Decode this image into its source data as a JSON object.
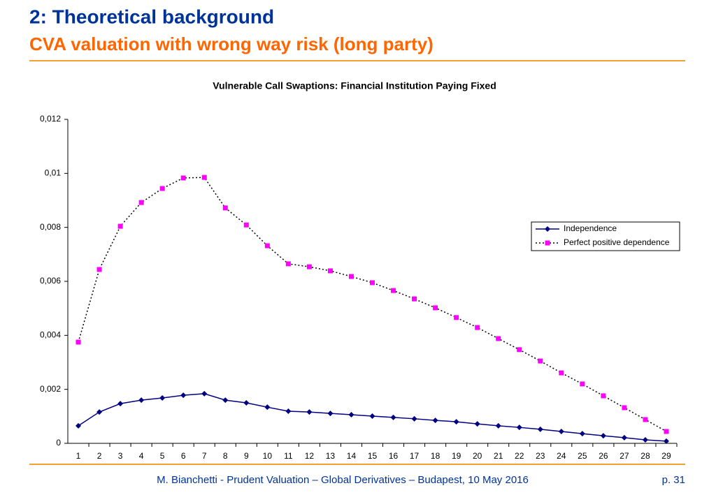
{
  "slide": {
    "title": "2: Theoretical background",
    "subtitle": "CVA valuation with wrong way risk (long party)",
    "footer": "M. Bianchetti - Prudent Valuation – Global Derivatives – Budapest, 10 May 2016",
    "page": "p. 31"
  },
  "chart_data": {
    "type": "line",
    "title": "Vulnerable Call Swaptions: Financial Institution Paying Fixed",
    "categories": [
      1,
      2,
      3,
      4,
      5,
      6,
      7,
      8,
      9,
      10,
      11,
      12,
      13,
      14,
      15,
      16,
      17,
      18,
      19,
      20,
      21,
      22,
      23,
      24,
      25,
      26,
      27,
      28,
      29
    ],
    "series": [
      {
        "name": "Independence",
        "color": "#000080",
        "line_color": "#000080",
        "line_style": "solid",
        "marker": "diamond",
        "values": [
          0.00065,
          0.00116,
          0.00147,
          0.0016,
          0.00168,
          0.00178,
          0.00184,
          0.0016,
          0.0015,
          0.00134,
          0.00119,
          0.00116,
          0.00111,
          0.00106,
          0.00101,
          0.00096,
          0.00091,
          0.00085,
          0.0008,
          0.00072,
          0.00065,
          0.00059,
          0.00052,
          0.00044,
          0.00036,
          0.00028,
          0.00021,
          0.00013,
          8e-05
        ]
      },
      {
        "name": "Perfect positive dependence",
        "color": "#ff00ff",
        "line_color": "#000000",
        "line_style": "dotted",
        "marker": "square",
        "values": [
          0.00375,
          0.00644,
          0.00804,
          0.00892,
          0.00944,
          0.00983,
          0.00985,
          0.00872,
          0.00809,
          0.00732,
          0.00665,
          0.00654,
          0.00639,
          0.00618,
          0.00595,
          0.00566,
          0.00535,
          0.00502,
          0.00466,
          0.00429,
          0.00388,
          0.00347,
          0.00305,
          0.00261,
          0.0022,
          0.00176,
          0.00132,
          0.00088,
          0.00044
        ]
      }
    ],
    "ylim": [
      0,
      0.012
    ],
    "yticks": [
      0,
      {
        "value": 0.002,
        "label": "0,002"
      },
      {
        "value": 0.004,
        "label": "0,004"
      },
      {
        "value": 0.006,
        "label": "0,006"
      },
      {
        "value": 0.008,
        "label": "0,008"
      },
      {
        "value": 0.01,
        "label": "0,01"
      },
      {
        "value": 0.012,
        "label": "0,012"
      }
    ],
    "grid": false,
    "legend": "right"
  }
}
